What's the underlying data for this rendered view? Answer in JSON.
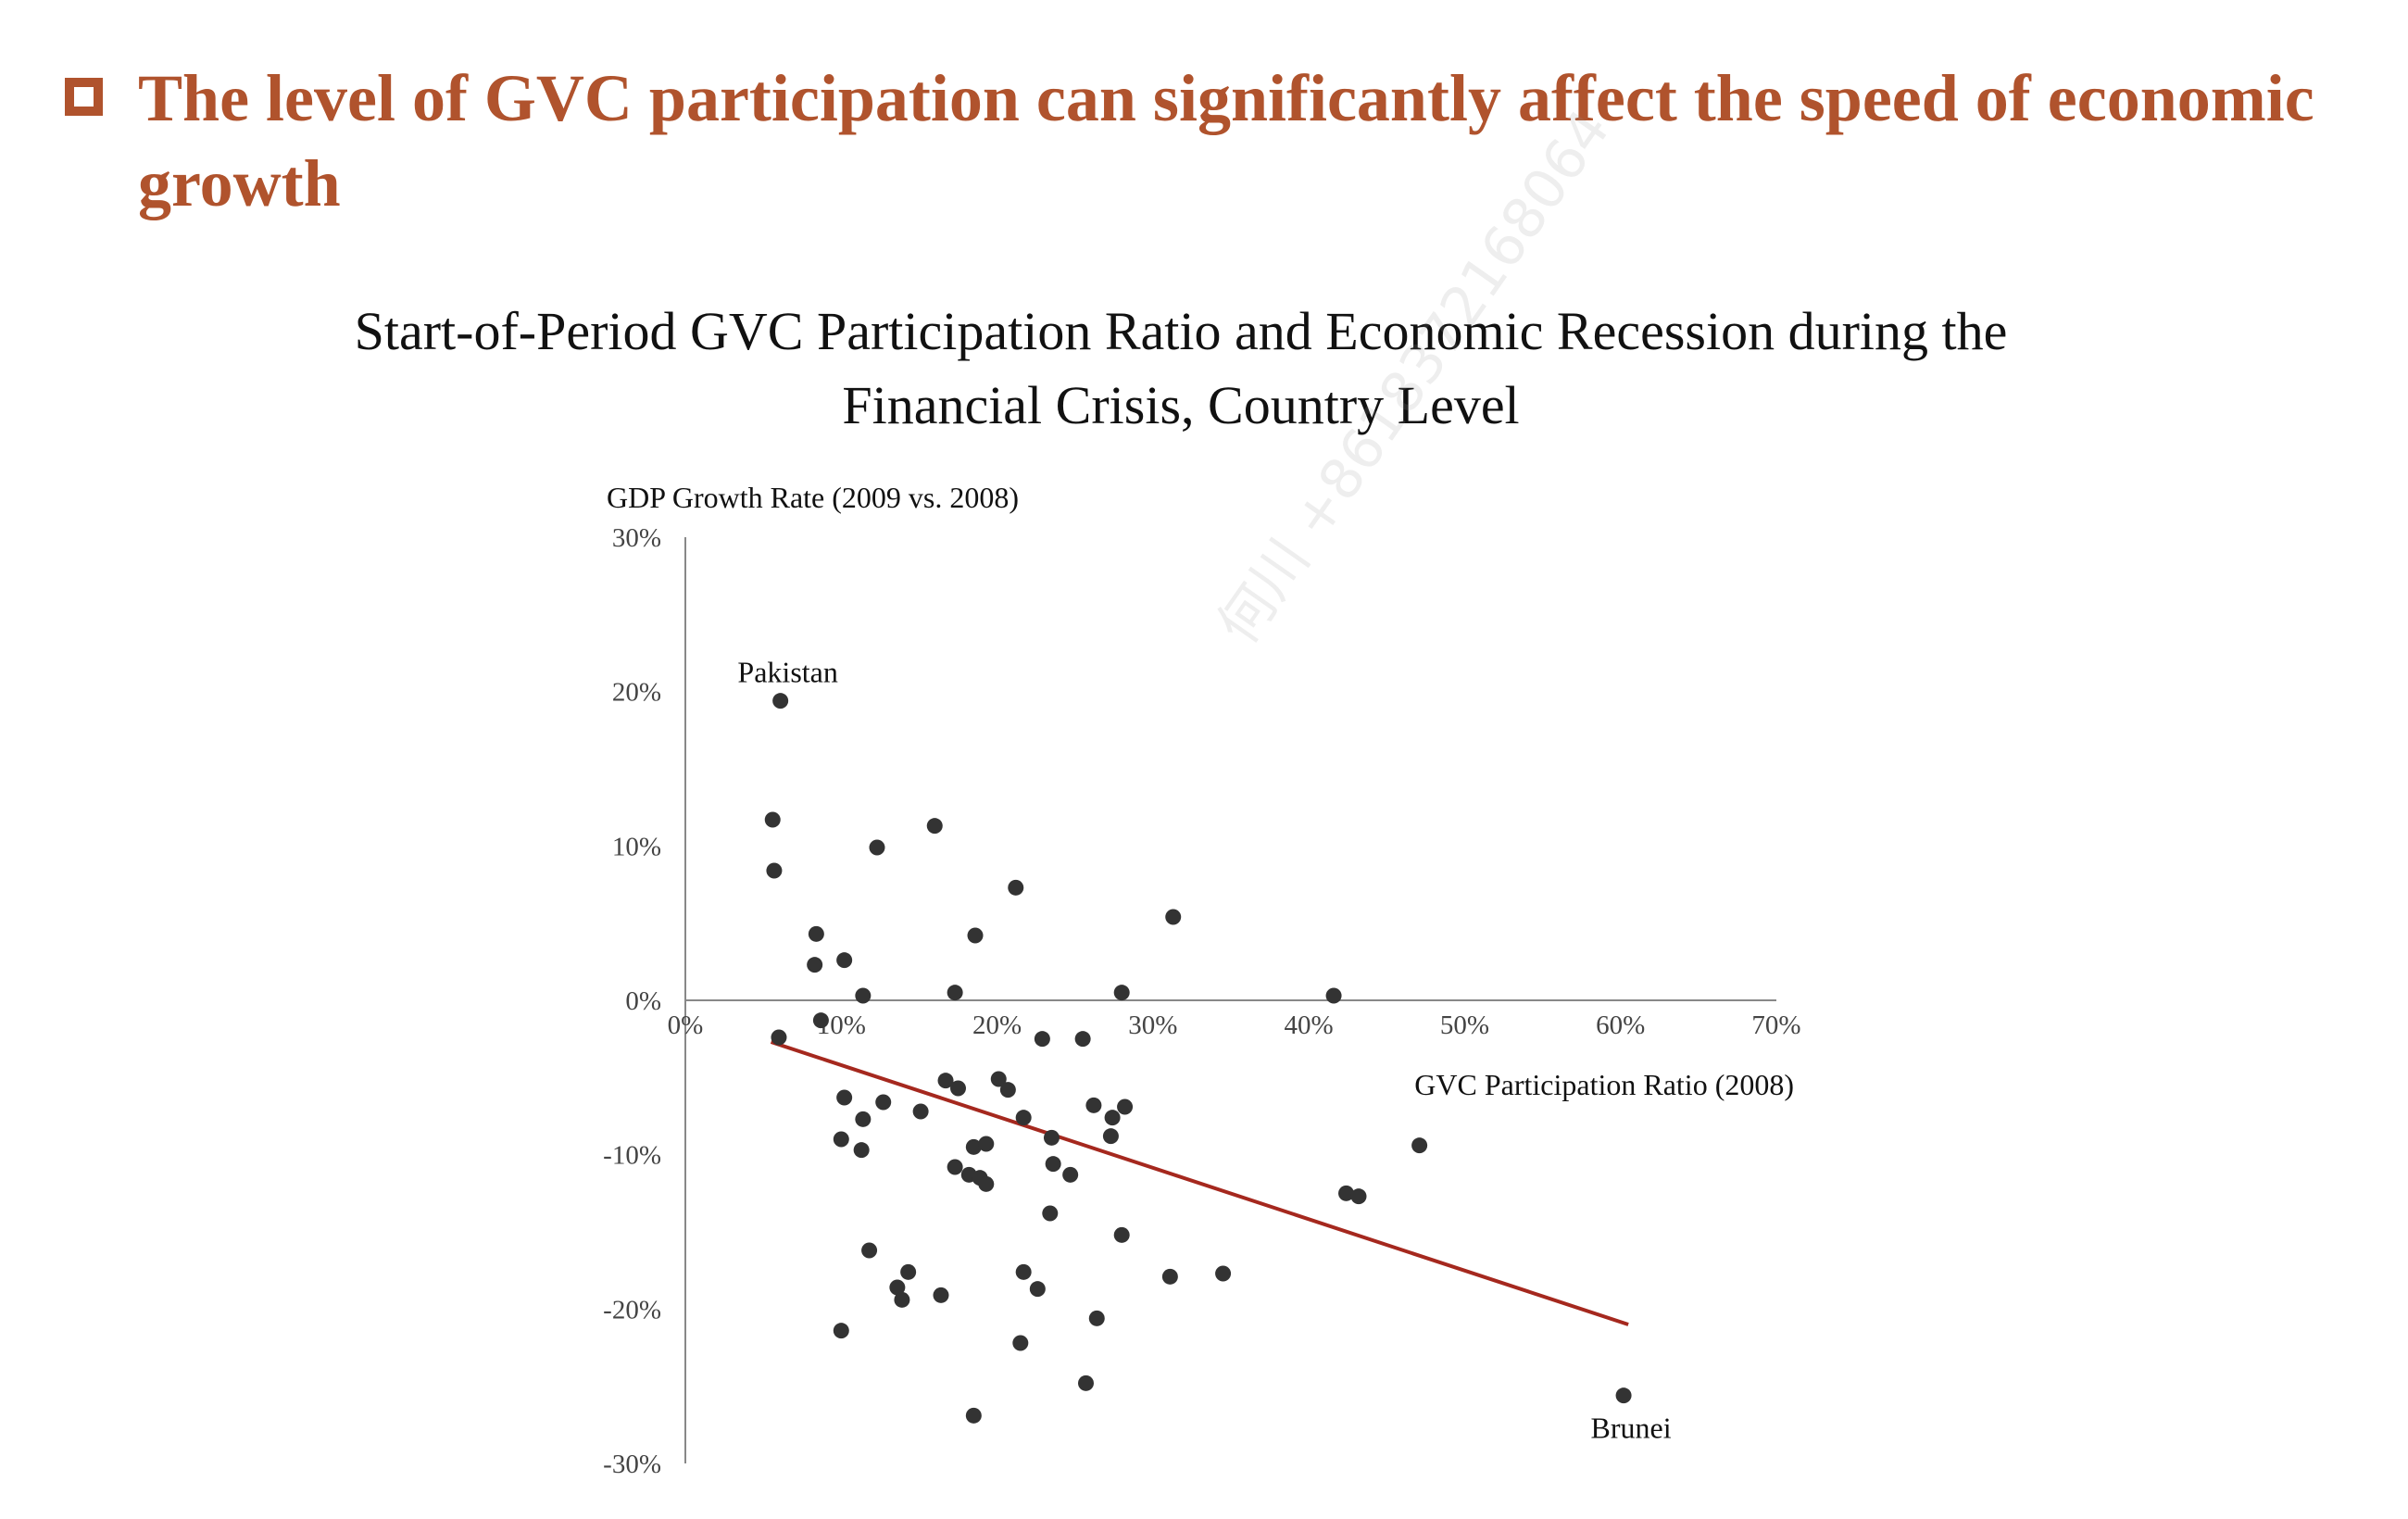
{
  "headline": {
    "text": "The level of GVC participation can significantly affect the speed of economic growth",
    "bullet_color": "#b0532d"
  },
  "watermark": "何川 +8618372168064",
  "chart_data": {
    "type": "scatter",
    "title": "Start-of-Period GVC Participation Ratio and Economic Recession during the Financial Crisis, Country Level",
    "xlabel": "GVC Participation Ratio (2008)",
    "ylabel": "GDP Growth Rate (2009 vs. 2008)",
    "xlim": [
      0,
      70
    ],
    "ylim": [
      -30,
      30
    ],
    "x_ticks": [
      "0%",
      "10%",
      "20%",
      "30%",
      "40%",
      "50%",
      "60%",
      "70%"
    ],
    "y_ticks": [
      "30%",
      "20%",
      "10%",
      "0%",
      "-10%",
      "-20%",
      "-30%"
    ],
    "point_color": "#333333",
    "trendline": {
      "color": "#a5281e",
      "x": [
        5.5,
        60.5
      ],
      "y": [
        -2.7,
        -21.0
      ]
    },
    "annotations": [
      {
        "label": "Pakistan",
        "x": 6.1,
        "y": 19.4
      },
      {
        "label": "Brunei",
        "x": 60.2,
        "y": -25.6
      }
    ],
    "points": [
      {
        "x": 6.1,
        "y": 19.4
      },
      {
        "x": 5.6,
        "y": 11.7
      },
      {
        "x": 5.7,
        "y": 8.4
      },
      {
        "x": 12.3,
        "y": 9.9
      },
      {
        "x": 16.0,
        "y": 11.3
      },
      {
        "x": 21.2,
        "y": 7.3
      },
      {
        "x": 31.3,
        "y": 5.4
      },
      {
        "x": 8.4,
        "y": 4.3
      },
      {
        "x": 18.6,
        "y": 4.2
      },
      {
        "x": 10.2,
        "y": 2.6
      },
      {
        "x": 8.3,
        "y": 2.3
      },
      {
        "x": 11.4,
        "y": 0.3
      },
      {
        "x": 17.3,
        "y": 0.5
      },
      {
        "x": 28.0,
        "y": 0.5
      },
      {
        "x": 41.6,
        "y": 0.3
      },
      {
        "x": 8.7,
        "y": -1.3
      },
      {
        "x": 6.0,
        "y": -2.4
      },
      {
        "x": 22.9,
        "y": -2.5
      },
      {
        "x": 25.5,
        "y": -2.5
      },
      {
        "x": 16.7,
        "y": -5.2
      },
      {
        "x": 20.1,
        "y": -5.1
      },
      {
        "x": 17.5,
        "y": -5.7
      },
      {
        "x": 20.7,
        "y": -5.8
      },
      {
        "x": 10.2,
        "y": -6.3
      },
      {
        "x": 12.7,
        "y": -6.6
      },
      {
        "x": 26.2,
        "y": -6.8
      },
      {
        "x": 28.2,
        "y": -6.9
      },
      {
        "x": 15.1,
        "y": -7.2
      },
      {
        "x": 11.4,
        "y": -7.7
      },
      {
        "x": 21.7,
        "y": -7.6
      },
      {
        "x": 27.4,
        "y": -7.6
      },
      {
        "x": 27.3,
        "y": -8.8
      },
      {
        "x": 10.0,
        "y": -9.0
      },
      {
        "x": 23.5,
        "y": -8.9
      },
      {
        "x": 11.3,
        "y": -9.7
      },
      {
        "x": 18.5,
        "y": -9.5
      },
      {
        "x": 19.3,
        "y": -9.3
      },
      {
        "x": 47.1,
        "y": -9.4
      },
      {
        "x": 17.3,
        "y": -10.8
      },
      {
        "x": 23.6,
        "y": -10.6
      },
      {
        "x": 18.2,
        "y": -11.3
      },
      {
        "x": 18.9,
        "y": -11.5
      },
      {
        "x": 19.3,
        "y": -11.9
      },
      {
        "x": 24.7,
        "y": -11.3
      },
      {
        "x": 42.4,
        "y": -12.5
      },
      {
        "x": 43.2,
        "y": -12.7
      },
      {
        "x": 23.4,
        "y": -13.8
      },
      {
        "x": 28.0,
        "y": -15.2
      },
      {
        "x": 11.8,
        "y": -16.2
      },
      {
        "x": 14.3,
        "y": -17.6
      },
      {
        "x": 21.7,
        "y": -17.6
      },
      {
        "x": 31.1,
        "y": -17.9
      },
      {
        "x": 34.5,
        "y": -17.7
      },
      {
        "x": 13.6,
        "y": -18.6
      },
      {
        "x": 22.6,
        "y": -18.7
      },
      {
        "x": 13.9,
        "y": -19.4
      },
      {
        "x": 16.4,
        "y": -19.1
      },
      {
        "x": 26.4,
        "y": -20.6
      },
      {
        "x": 10.0,
        "y": -21.4
      },
      {
        "x": 21.5,
        "y": -22.2
      },
      {
        "x": 25.7,
        "y": -24.8
      },
      {
        "x": 60.2,
        "y": -25.6
      },
      {
        "x": 18.5,
        "y": -26.9
      }
    ]
  }
}
